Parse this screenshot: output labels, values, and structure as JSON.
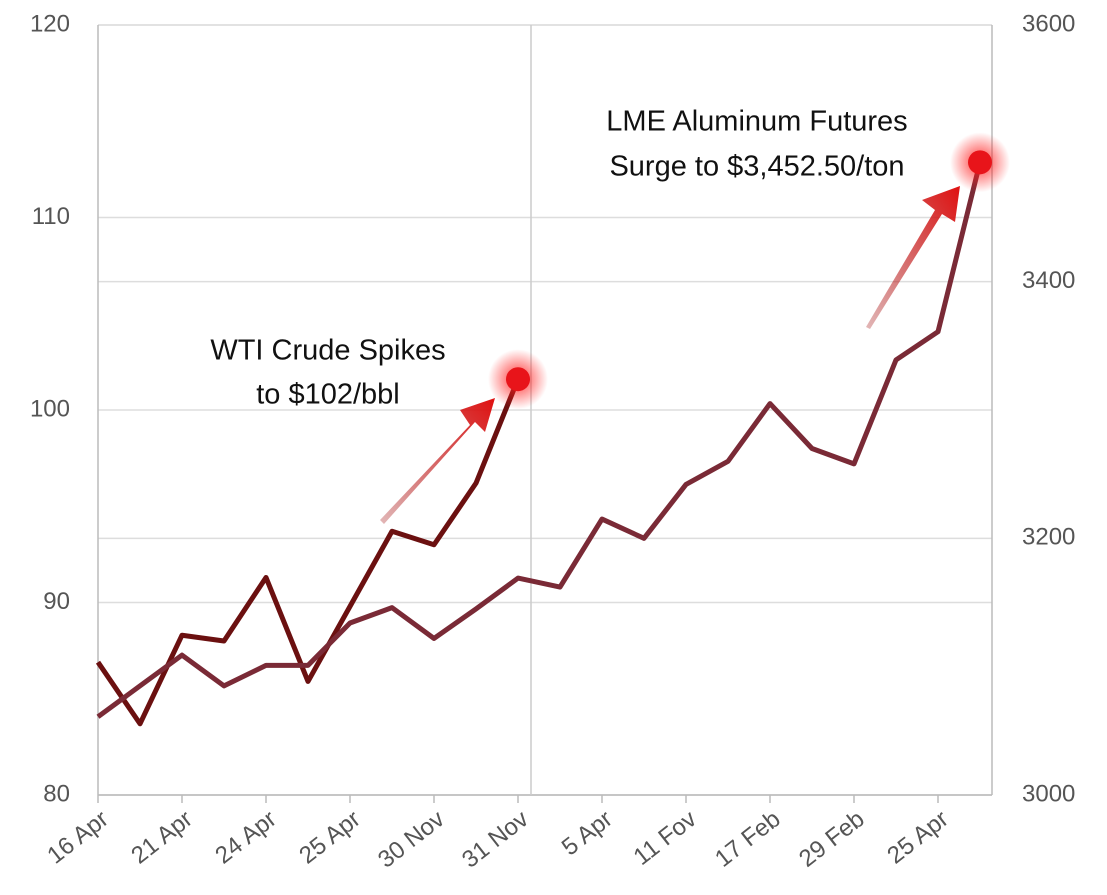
{
  "chart_data": {
    "type": "line",
    "categories": [
      "16 Apr",
      null,
      "21 Apr",
      null,
      "24 Apr",
      null,
      "25 Apr",
      null,
      "30 Nov",
      null,
      "31 Nov",
      null,
      "5 Apr",
      null,
      "11 Fov",
      null,
      "17 Feb",
      null,
      "29 Feb",
      null,
      "25 Apr",
      null
    ],
    "series": [
      {
        "name": "WTI Crude",
        "color": "#6b1010",
        "values": [
          86.9,
          83.7,
          88.3,
          88.0,
          91.3,
          85.9,
          89.8,
          93.7,
          93.0,
          96.2,
          101.6,
          null,
          null,
          null,
          null,
          null,
          null,
          null,
          null,
          null,
          null,
          null
        ]
      },
      {
        "name": "LME Aluminum Futures",
        "color": "#7a2a36",
        "axis": "y2",
        "values": [
          3061,
          3085,
          3109,
          3085,
          3101,
          3101,
          3134,
          3146,
          3122,
          3145,
          3169,
          3162,
          3215,
          3200,
          3242,
          3260,
          3305,
          3270,
          3258,
          3339,
          3361,
          3493
        ]
      }
    ],
    "ylim": [
      80,
      120
    ],
    "yticks": [
      80,
      90,
      100,
      110,
      120
    ],
    "y2lim": [
      3000,
      3600
    ],
    "y2ticks": [
      3000,
      3200,
      3400,
      3600
    ],
    "grid": true,
    "annotations": [
      {
        "lines": [
          "WTI Crude Spikes",
          "to $102/bbl"
        ]
      },
      {
        "lines": [
          "LME Aluminum Futures",
          "Surge to $3,452.50/ton"
        ]
      }
    ]
  }
}
